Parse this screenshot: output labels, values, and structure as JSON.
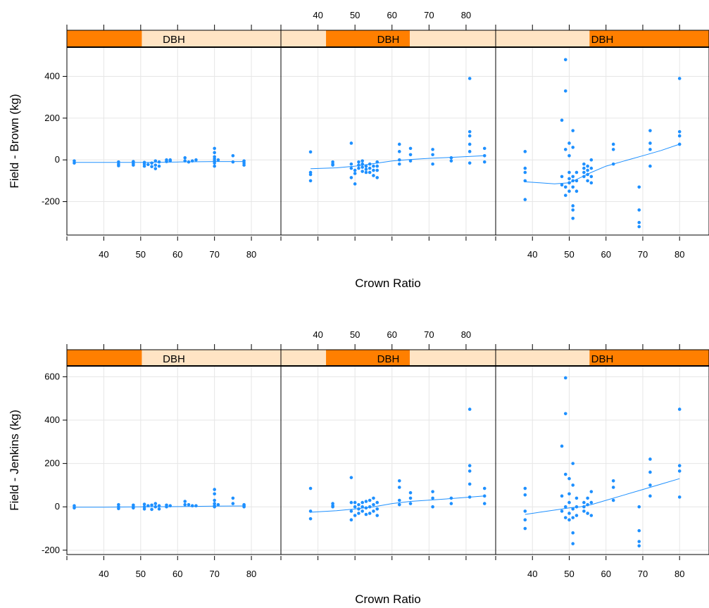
{
  "colors": {
    "point": "#1e90ff",
    "loess": "#1e90ff",
    "strip_bg": "#ffe4c4",
    "strip_fill": "#ff7f00",
    "grid": "#e6e6e6",
    "frame": "#000000"
  },
  "chart_data": [
    {
      "type": "scatter",
      "title": "",
      "xlabel": "Crown Ratio",
      "ylabel": "Field - Brown (kg)",
      "xlim": [
        30,
        88
      ],
      "ylim": [
        -360,
        540
      ],
      "xticks": [
        40,
        50,
        60,
        70,
        80
      ],
      "yticks": [
        -200,
        0,
        200,
        400
      ],
      "strip_label": "DBH",
      "smoother": "loess",
      "panels": [
        {
          "strip_shade": [
            0,
            0.35
          ],
          "x": [
            32,
            32,
            44,
            44,
            44,
            48,
            48,
            48,
            51,
            51,
            51,
            52,
            53,
            53,
            54,
            54,
            54,
            55,
            55,
            57,
            57,
            58,
            58,
            62,
            62,
            63,
            64,
            65,
            70,
            70,
            70,
            70,
            70,
            70,
            70,
            71,
            75,
            75,
            78,
            78,
            78
          ],
          "y": [
            -5,
            -15,
            -10,
            -20,
            -28,
            -8,
            -18,
            -25,
            -12,
            -20,
            -30,
            -22,
            -15,
            -32,
            -5,
            -25,
            -42,
            -10,
            -30,
            0,
            -8,
            0,
            -5,
            10,
            -5,
            -10,
            -5,
            0,
            55,
            35,
            15,
            5,
            -5,
            -15,
            -30,
            0,
            20,
            -10,
            -5,
            -15,
            -25
          ],
          "fit_x": [
            32,
            40,
            50,
            60,
            70,
            78
          ],
          "fit_y": [
            -12,
            -12,
            -12,
            -10,
            -8,
            -8
          ]
        },
        {
          "strip_shade": [
            0.21,
            0.6
          ],
          "x": [
            38,
            38,
            38,
            38,
            44,
            44,
            44,
            49,
            49,
            49,
            49,
            50,
            50,
            50,
            51,
            51,
            51,
            52,
            52,
            52,
            52,
            53,
            53,
            53,
            54,
            54,
            54,
            55,
            55,
            55,
            56,
            56,
            56,
            56,
            62,
            62,
            62,
            62,
            65,
            65,
            65,
            71,
            71,
            71,
            76,
            76,
            81,
            81,
            81,
            81,
            81,
            81,
            85,
            85,
            85
          ],
          "y": [
            38,
            -60,
            -70,
            -100,
            -10,
            -20,
            -25,
            80,
            -20,
            -40,
            -85,
            -50,
            -65,
            -115,
            -10,
            -25,
            -40,
            -5,
            -20,
            -35,
            -55,
            -30,
            -45,
            -60,
            -20,
            -40,
            -60,
            -30,
            -50,
            -75,
            -10,
            -30,
            -50,
            -85,
            75,
            40,
            0,
            -20,
            55,
            25,
            -5,
            50,
            25,
            -20,
            10,
            -5,
            390,
            135,
            115,
            75,
            40,
            -15,
            55,
            20,
            -10
          ],
          "fit_x": [
            38,
            45,
            50,
            55,
            60,
            65,
            71,
            76,
            85
          ],
          "fit_y": [
            -42,
            -38,
            -30,
            -18,
            -5,
            2,
            8,
            12,
            20
          ]
        },
        {
          "strip_shade": [
            0.44,
            1.0
          ],
          "x": [
            38,
            38,
            38,
            38,
            38,
            48,
            48,
            48,
            49,
            49,
            49,
            49,
            49,
            50,
            50,
            50,
            50,
            50,
            50,
            51,
            51,
            51,
            51,
            51,
            51,
            51,
            51,
            52,
            52,
            52,
            54,
            54,
            54,
            54,
            55,
            55,
            55,
            55,
            56,
            56,
            56,
            56,
            62,
            62,
            62,
            69,
            69,
            69,
            69,
            72,
            72,
            72,
            72,
            80,
            80,
            80,
            80
          ],
          "y": [
            40,
            -40,
            -60,
            -100,
            -190,
            190,
            -80,
            -120,
            480,
            330,
            50,
            -130,
            -170,
            80,
            20,
            -60,
            -90,
            -110,
            -150,
            140,
            60,
            -80,
            -100,
            -130,
            -220,
            -240,
            -280,
            -60,
            -100,
            -150,
            -20,
            -40,
            -60,
            -80,
            -30,
            -50,
            -70,
            -100,
            0,
            -40,
            -80,
            -110,
            75,
            50,
            -20,
            -130,
            -240,
            -300,
            -320,
            140,
            80,
            50,
            -30,
            390,
            135,
            115,
            75
          ],
          "fit_x": [
            38,
            42,
            46,
            50,
            53,
            56,
            60,
            65,
            70,
            75,
            80
          ],
          "fit_y": [
            -105,
            -110,
            -115,
            -110,
            -85,
            -60,
            -30,
            -5,
            20,
            45,
            75
          ]
        }
      ]
    },
    {
      "type": "scatter",
      "title": "",
      "xlabel": "Crown Ratio",
      "ylabel": "Field - Jenkins (kg)",
      "xlim": [
        30,
        88
      ],
      "ylim": [
        -220,
        650
      ],
      "xticks": [
        40,
        50,
        60,
        70,
        80
      ],
      "yticks": [
        -200,
        0,
        200,
        400,
        600
      ],
      "strip_label": "DBH",
      "smoother": "loess",
      "panels": [
        {
          "strip_shade": [
            0,
            0.35
          ],
          "x": [
            32,
            32,
            44,
            44,
            44,
            48,
            48,
            48,
            51,
            51,
            51,
            52,
            53,
            53,
            54,
            54,
            55,
            55,
            57,
            57,
            58,
            62,
            62,
            63,
            64,
            65,
            70,
            70,
            70,
            70,
            70,
            70,
            71,
            75,
            75,
            78,
            78,
            78
          ],
          "y": [
            5,
            -5,
            10,
            0,
            -8,
            8,
            0,
            -5,
            12,
            0,
            -10,
            5,
            8,
            -12,
            15,
            0,
            5,
            -10,
            8,
            0,
            5,
            25,
            10,
            10,
            5,
            5,
            80,
            60,
            30,
            15,
            5,
            0,
            10,
            40,
            15,
            10,
            5,
            0
          ],
          "fit_x": [
            32,
            40,
            50,
            60,
            70,
            78
          ],
          "fit_y": [
            -2,
            -2,
            0,
            1,
            3,
            4
          ]
        },
        {
          "strip_shade": [
            0.21,
            0.6
          ],
          "x": [
            38,
            38,
            38,
            44,
            44,
            44,
            49,
            49,
            49,
            49,
            50,
            50,
            50,
            51,
            51,
            51,
            52,
            52,
            52,
            53,
            53,
            53,
            54,
            54,
            54,
            55,
            55,
            55,
            56,
            56,
            56,
            62,
            62,
            62,
            62,
            65,
            65,
            65,
            71,
            71,
            71,
            76,
            76,
            81,
            81,
            81,
            81,
            81,
            85,
            85,
            85
          ],
          "y": [
            85,
            -20,
            -55,
            15,
            5,
            0,
            135,
            20,
            -20,
            -60,
            20,
            0,
            -40,
            10,
            -10,
            -30,
            20,
            0,
            -20,
            25,
            -5,
            -35,
            30,
            0,
            -30,
            40,
            10,
            -20,
            20,
            -10,
            -40,
            120,
            90,
            30,
            10,
            65,
            40,
            15,
            70,
            40,
            0,
            40,
            15,
            450,
            190,
            165,
            105,
            45,
            85,
            50,
            15
          ],
          "fit_x": [
            38,
            45,
            50,
            55,
            60,
            65,
            71,
            76,
            85
          ],
          "fit_y": [
            -25,
            -18,
            -10,
            0,
            15,
            25,
            32,
            38,
            50
          ]
        },
        {
          "strip_shade": [
            0.44,
            1.0
          ],
          "x": [
            38,
            38,
            38,
            38,
            38,
            48,
            48,
            48,
            49,
            49,
            49,
            49,
            49,
            50,
            50,
            50,
            50,
            50,
            51,
            51,
            51,
            51,
            51,
            51,
            52,
            52,
            52,
            54,
            54,
            54,
            55,
            55,
            55,
            56,
            56,
            56,
            62,
            62,
            62,
            69,
            69,
            69,
            69,
            72,
            72,
            72,
            72,
            80,
            80,
            80,
            80
          ],
          "y": [
            85,
            55,
            -20,
            -60,
            -100,
            280,
            50,
            -20,
            595,
            430,
            150,
            0,
            -50,
            130,
            60,
            20,
            -30,
            -60,
            200,
            100,
            -10,
            -50,
            -120,
            -170,
            40,
            0,
            -40,
            20,
            0,
            -20,
            40,
            10,
            -30,
            70,
            20,
            -40,
            120,
            90,
            30,
            0,
            -110,
            -160,
            -180,
            220,
            160,
            100,
            50,
            450,
            190,
            165,
            45
          ],
          "fit_x": [
            38,
            42,
            46,
            50,
            53,
            56,
            60,
            65,
            70,
            75,
            80
          ],
          "fit_y": [
            -35,
            -25,
            -15,
            -5,
            0,
            10,
            30,
            55,
            80,
            105,
            130
          ]
        }
      ]
    }
  ]
}
